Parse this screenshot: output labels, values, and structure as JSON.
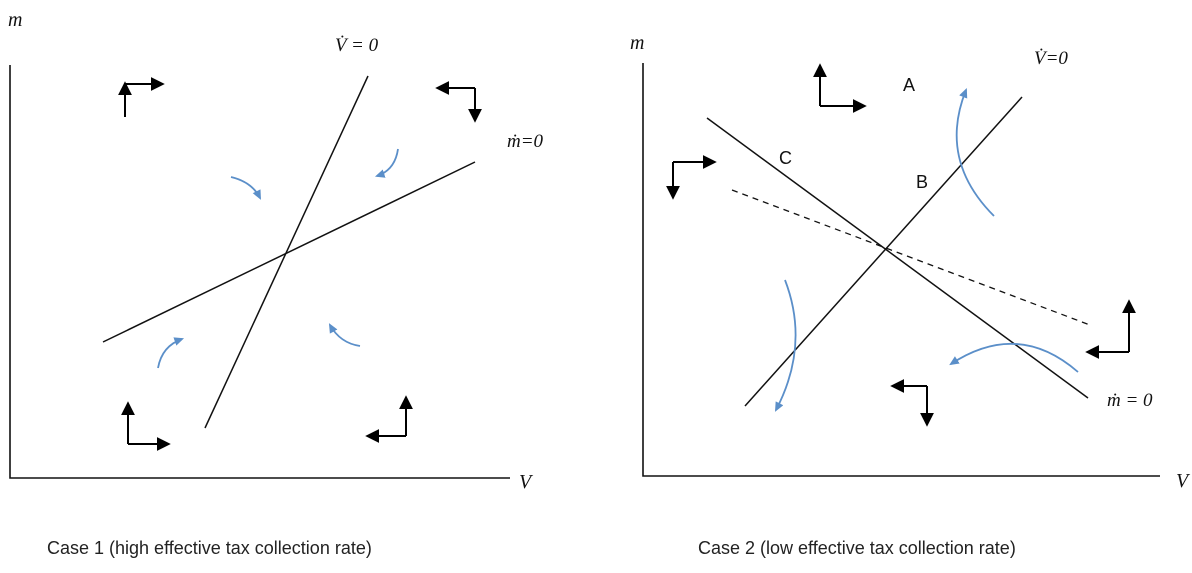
{
  "diagram": {
    "case1": {
      "y_axis_label": "m",
      "x_axis_label": "V",
      "vdot_label": "V̇ = 0",
      "mdot_label": "ṁ=0",
      "caption": "Case 1 (high effective tax collection rate)"
    },
    "case2": {
      "y_axis_label": "m",
      "x_axis_label": "V",
      "vdot_label": "V̇=0",
      "mdot_label": "ṁ = 0",
      "point_a": "A",
      "point_b": "B",
      "point_c": "C",
      "caption": "Case 2 (low effective tax collection rate)"
    },
    "colors": {
      "lines": "#111111",
      "flow_arrows": "#5b8fc9",
      "direction_arrows": "#000000"
    }
  }
}
